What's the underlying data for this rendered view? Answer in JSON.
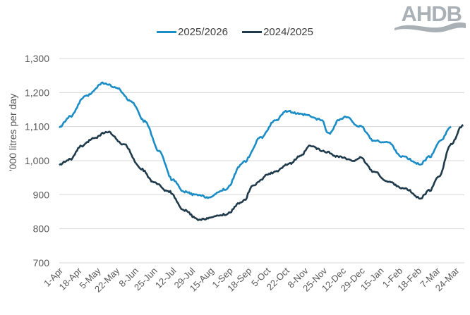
{
  "logo": {
    "text": "AHDB"
  },
  "legend": [
    {
      "label": "2025/2026",
      "color": "#1B8DC6"
    },
    {
      "label": "2024/2025",
      "color": "#1F3A4A"
    }
  ],
  "chart_data": {
    "type": "line",
    "title": "",
    "xlabel": "",
    "ylabel": "'000 litres per day",
    "ylim": [
      700,
      1300
    ],
    "yticks": [
      700,
      800,
      900,
      1000,
      1100,
      1200,
      1300
    ],
    "ytick_labels": [
      "700",
      "800",
      "900",
      "1,000",
      "1,100",
      "1,200",
      "1,300"
    ],
    "grid": "horizontal",
    "legend_position": "top",
    "x_tick_labels": [
      "1-Apr",
      "18-Apr",
      "5-May",
      "22-May",
      "8-Jun",
      "25-Jun",
      "12-Jul",
      "29-Jul",
      "15-Aug",
      "1-Sep",
      "18-Sep",
      "5-Oct",
      "22-Oct",
      "8-Nov",
      "25-Nov",
      "12-Dec",
      "29-Dec",
      "15-Jan",
      "1-Feb",
      "18-Feb",
      "7-Mar",
      "24-Mar"
    ],
    "x_tick_day_offsets": [
      0,
      17,
      34,
      51,
      68,
      85,
      102,
      119,
      136,
      153,
      170,
      187,
      204,
      221,
      238,
      255,
      272,
      289,
      306,
      323,
      340,
      357
    ],
    "x_range_days": [
      0,
      365
    ],
    "series": [
      {
        "name": "2025/2026",
        "color": "#1B8DC6",
        "x_days": [
          0,
          10,
          23,
          40,
          52,
          64,
          77,
          90,
          102,
          112,
          124,
          135,
          150,
          166,
          182,
          194,
          204,
          220,
          236,
          243,
          252,
          258,
          271,
          284,
          296,
          309,
          325,
          334,
          344,
          353
        ],
        "values": [
          1100,
          1130,
          1188,
          1228,
          1213,
          1176,
          1116,
          1027,
          944,
          909,
          899,
          893,
          917,
          996,
          1068,
          1116,
          1145,
          1135,
          1120,
          1079,
          1120,
          1128,
          1100,
          1058,
          1054,
          1012,
          990,
          1012,
          1062,
          1100
        ]
      },
      {
        "name": "2024/2025",
        "color": "#1F3A4A",
        "x_days": [
          0,
          10,
          20,
          32,
          43,
          58,
          74,
          86,
          99,
          112,
          126,
          137,
          150,
          166,
          175,
          191,
          207,
          217,
          226,
          239,
          252,
          264,
          271,
          284,
          296,
          312,
          325,
          334,
          342,
          353,
          364
        ],
        "values": [
          990,
          1004,
          1043,
          1068,
          1085,
          1048,
          975,
          934,
          909,
          855,
          826,
          834,
          843,
          882,
          930,
          963,
          990,
          1012,
          1043,
          1027,
          1012,
          1000,
          1008,
          967,
          938,
          917,
          890,
          913,
          955,
          1048,
          1105
        ]
      }
    ]
  }
}
